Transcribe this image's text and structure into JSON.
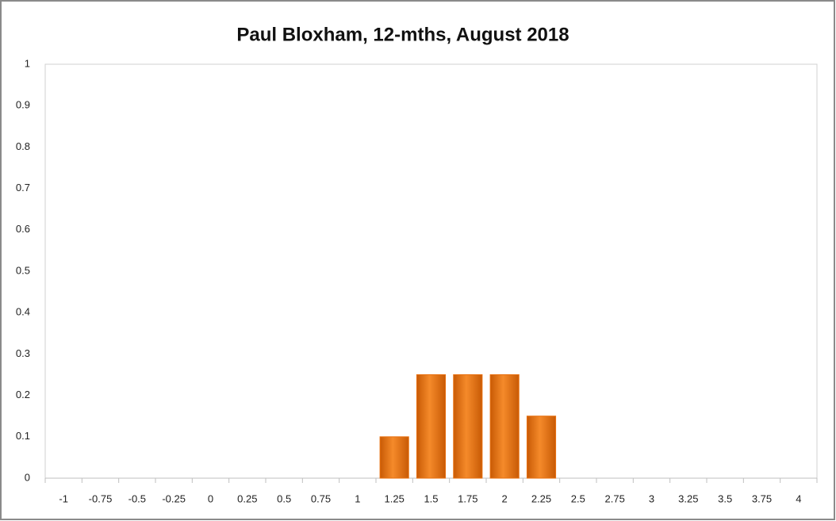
{
  "chart_data": {
    "type": "bar",
    "title": "Paul Bloxham, 12-mths, August 2018",
    "categories": [
      "-1",
      "-0.75",
      "-0.5",
      "-0.25",
      "0",
      "0.25",
      "0.5",
      "0.75",
      "1",
      "1.25",
      "1.5",
      "1.75",
      "2",
      "2.25",
      "2.5",
      "2.75",
      "3",
      "3.25",
      "3.5",
      "3.75",
      "4"
    ],
    "values": [
      0,
      0,
      0,
      0,
      0,
      0,
      0,
      0,
      0,
      0.1,
      0.25,
      0.25,
      0.25,
      0.15,
      0,
      0,
      0,
      0,
      0,
      0,
      0
    ],
    "color": "#e8700f",
    "ylim": [
      0,
      1
    ],
    "yticks": [
      0,
      0.1,
      0.2,
      0.3,
      0.4,
      0.5,
      0.6,
      0.7,
      0.8,
      0.9,
      1
    ],
    "grid": false
  }
}
